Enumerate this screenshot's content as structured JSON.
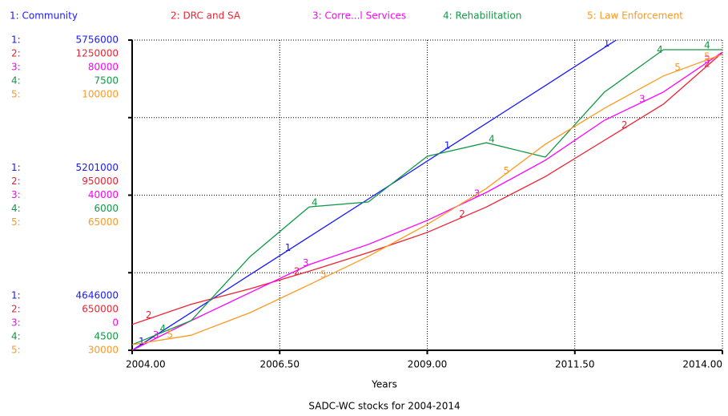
{
  "chart_data": {
    "type": "line",
    "caption": "SADC-WC stocks for 2004-2014",
    "xlabel": "Years",
    "x": [
      2004,
      2005,
      2006,
      2007,
      2008,
      2009,
      2010,
      2011,
      2012,
      2013,
      2014
    ],
    "xlim": [
      2004,
      2014
    ],
    "xticks": [
      {
        "value": 2004,
        "label": "2004.00"
      },
      {
        "value": 2006.5,
        "label": "2006.50"
      },
      {
        "value": 2009,
        "label": "2009.00"
      },
      {
        "value": 2011.5,
        "label": "2011.50"
      },
      {
        "value": 2014,
        "label": "2014.00"
      }
    ],
    "grid": true,
    "series": [
      {
        "name": "1: Community",
        "axis_prefix": "1:",
        "marker": "1",
        "color": "#1a1aff",
        "ylim": [
          4646000,
          5756000
        ],
        "yticks": [
          4646000,
          5201000,
          5756000
        ],
        "values": [
          4646000,
          4781000,
          4917000,
          5052000,
          5187000,
          5323000,
          5458000,
          5593000,
          5729000,
          5864000,
          5999000
        ]
      },
      {
        "name": "2: DRC and SA",
        "axis_prefix": "2:",
        "marker": "2",
        "color": "#ee2233",
        "ylim": [
          650000,
          1250000
        ],
        "yticks": [
          650000,
          950000,
          1250000
        ],
        "values": [
          700000,
          739000,
          769000,
          803000,
          839000,
          878000,
          927000,
          986000,
          1056000,
          1126000,
          1226000
        ]
      },
      {
        "name": "3: Corre...l Services",
        "axis_prefix": "3:",
        "marker": "3",
        "color": "#ff00ff",
        "ylim": [
          0,
          80000
        ],
        "yticks": [
          0,
          40000,
          80000
        ],
        "values": [
          0,
          7650,
          14900,
          22100,
          27300,
          33500,
          40700,
          49000,
          59300,
          66600,
          76900
        ]
      },
      {
        "name": "4: Rehabilitation",
        "axis_prefix": "4:",
        "marker": "4",
        "color": "#119944",
        "ylim": [
          4500,
          7500
        ],
        "yticks": [
          4500,
          6000,
          7500
        ],
        "values": [
          4554,
          4787,
          5407,
          5887,
          5934,
          6376,
          6507,
          6368,
          6996,
          7407,
          7407
        ]
      },
      {
        "name": "5: Law Enforcement",
        "axis_prefix": "5:",
        "marker": "5",
        "color": "#ff9922",
        "ylim": [
          30000,
          100000
        ],
        "yticks": [
          30000,
          65000,
          100000
        ],
        "values": [
          31266,
          33400,
          38500,
          44800,
          51200,
          58400,
          66500,
          76500,
          84600,
          91900,
          96800
        ]
      }
    ]
  }
}
